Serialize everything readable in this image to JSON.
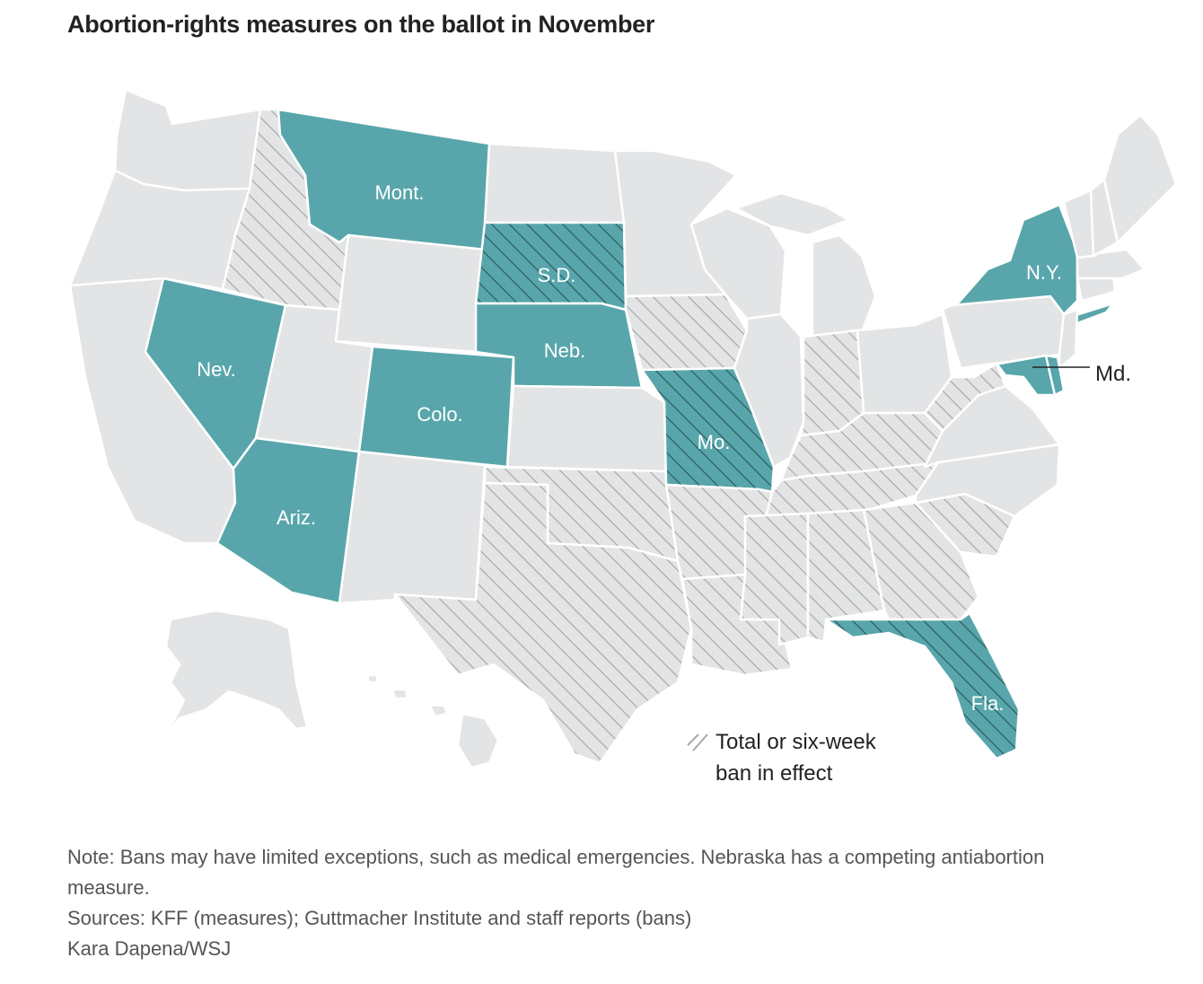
{
  "title": "Abortion-rights measures on the ballot in November",
  "colors": {
    "measure_fill": "#58a6ab",
    "other_fill": "#e3e4e5",
    "hatch_stroke": "#a8a8a8",
    "measure_hatch_stroke": "#2b5c5e",
    "border": "#ffffff"
  },
  "legend": {
    "line1": "Total or six-week",
    "line2": "ban in effect"
  },
  "states_with_measures": [
    {
      "abbr": "MT",
      "label": "Mont.",
      "ban": false
    },
    {
      "abbr": "SD",
      "label": "S.D.",
      "ban": true
    },
    {
      "abbr": "NE",
      "label": "Neb.",
      "ban": false
    },
    {
      "abbr": "NV",
      "label": "Nev.",
      "ban": false
    },
    {
      "abbr": "CO",
      "label": "Colo.",
      "ban": false
    },
    {
      "abbr": "AZ",
      "label": "Ariz.",
      "ban": false
    },
    {
      "abbr": "MO",
      "label": "Mo.",
      "ban": true
    },
    {
      "abbr": "NY",
      "label": "N.Y.",
      "ban": false
    },
    {
      "abbr": "MD",
      "label": "Md.",
      "ban": false
    },
    {
      "abbr": "FL",
      "label": "Fla.",
      "ban": true
    }
  ],
  "states_with_ban_only": [
    "ID",
    "TX",
    "OK",
    "AR",
    "LA",
    "MS",
    "AL",
    "TN",
    "KY",
    "WV",
    "GA",
    "SC",
    "IA",
    "IN"
  ],
  "note": "Note: Bans may have limited exceptions, such as medical emergencies. Nebraska has a competing antiabortion measure.",
  "sources": "Sources: KFF (measures); Guttmacher Institute and staff reports (bans)",
  "credit": "Kara Dapena/WSJ"
}
